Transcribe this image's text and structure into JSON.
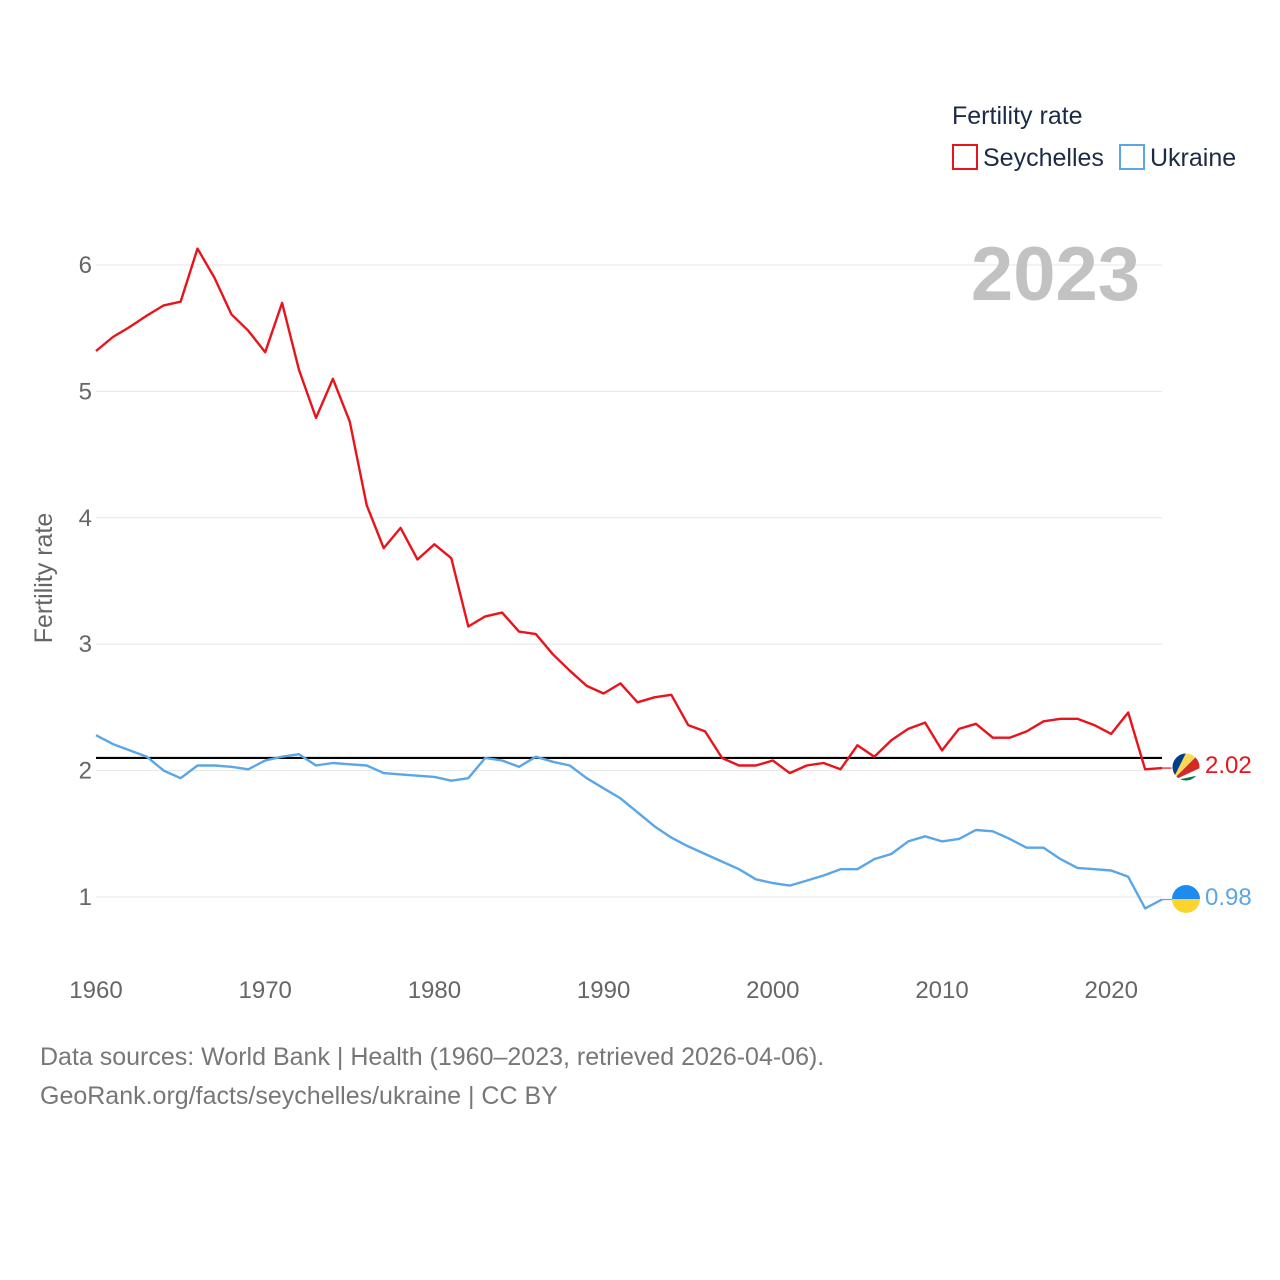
{
  "chart_data": {
    "type": "line",
    "ylabel": "Fertility rate",
    "xlim": [
      1960,
      2023
    ],
    "ylim": [
      0.5,
      6.5
    ],
    "yticks": [
      1,
      2,
      3,
      4,
      5,
      6
    ],
    "ytick_labels": [
      "1",
      "2",
      "3",
      "4",
      "5",
      "6"
    ],
    "xticks": [
      1960,
      1970,
      1980,
      1990,
      2000,
      2010,
      2020
    ],
    "xtick_labels": [
      "1960",
      "1970",
      "1980",
      "1990",
      "2000",
      "2010",
      "2020"
    ],
    "grid": true,
    "current_year_label": "2023",
    "reference_line": {
      "y": 2.1,
      "color": "#000000"
    },
    "legend": {
      "title": "Fertility rate",
      "position": "top-right"
    },
    "x": [
      1960,
      1961,
      1962,
      1963,
      1964,
      1965,
      1966,
      1967,
      1968,
      1969,
      1970,
      1971,
      1972,
      1973,
      1974,
      1975,
      1976,
      1977,
      1978,
      1979,
      1980,
      1981,
      1982,
      1983,
      1984,
      1985,
      1986,
      1987,
      1988,
      1989,
      1990,
      1991,
      1992,
      1993,
      1994,
      1995,
      1996,
      1997,
      1998,
      1999,
      2000,
      2001,
      2002,
      2003,
      2004,
      2005,
      2006,
      2007,
      2008,
      2009,
      2010,
      2011,
      2012,
      2013,
      2014,
      2015,
      2016,
      2017,
      2018,
      2019,
      2020,
      2021,
      2022,
      2023
    ],
    "series": [
      {
        "name": "Seychelles",
        "color": "#e8141c",
        "end_label": "2.02",
        "values": [
          5.32,
          5.43,
          5.51,
          5.6,
          5.68,
          5.71,
          6.13,
          5.9,
          5.61,
          5.48,
          5.31,
          5.7,
          5.17,
          4.79,
          5.1,
          4.76,
          4.1,
          3.76,
          3.92,
          3.67,
          3.79,
          3.68,
          3.14,
          3.22,
          3.25,
          3.1,
          3.08,
          2.92,
          2.79,
          2.67,
          2.61,
          2.69,
          2.54,
          2.58,
          2.6,
          2.36,
          2.31,
          2.1,
          2.04,
          2.04,
          2.08,
          1.98,
          2.04,
          2.06,
          2.01,
          2.2,
          2.11,
          2.24,
          2.33,
          2.38,
          2.16,
          2.33,
          2.37,
          2.26,
          2.26,
          2.31,
          2.39,
          2.41,
          2.41,
          2.36,
          2.29,
          2.46,
          2.01,
          2.02
        ]
      },
      {
        "name": "Ukraine",
        "color": "#5aa6e6",
        "end_label": "0.98",
        "values": [
          2.28,
          2.21,
          2.16,
          2.11,
          2.0,
          1.94,
          2.04,
          2.04,
          2.03,
          2.01,
          2.08,
          2.11,
          2.13,
          2.04,
          2.06,
          2.05,
          2.04,
          1.98,
          1.97,
          1.96,
          1.95,
          1.92,
          1.94,
          2.1,
          2.08,
          2.03,
          2.11,
          2.07,
          2.04,
          1.94,
          1.86,
          1.78,
          1.67,
          1.56,
          1.47,
          1.4,
          1.34,
          1.28,
          1.22,
          1.14,
          1.11,
          1.09,
          1.13,
          1.17,
          1.22,
          1.22,
          1.3,
          1.34,
          1.44,
          1.48,
          1.44,
          1.46,
          1.53,
          1.52,
          1.46,
          1.39,
          1.39,
          1.3,
          1.23,
          1.22,
          1.21,
          1.16,
          0.91,
          0.98
        ]
      }
    ]
  },
  "footer": {
    "line1": "Data sources: World Bank | Health (1960–2023, retrieved 2026-04-06).",
    "line2": "GeoRank.org/facts/seychelles/ukraine | CC BY"
  }
}
